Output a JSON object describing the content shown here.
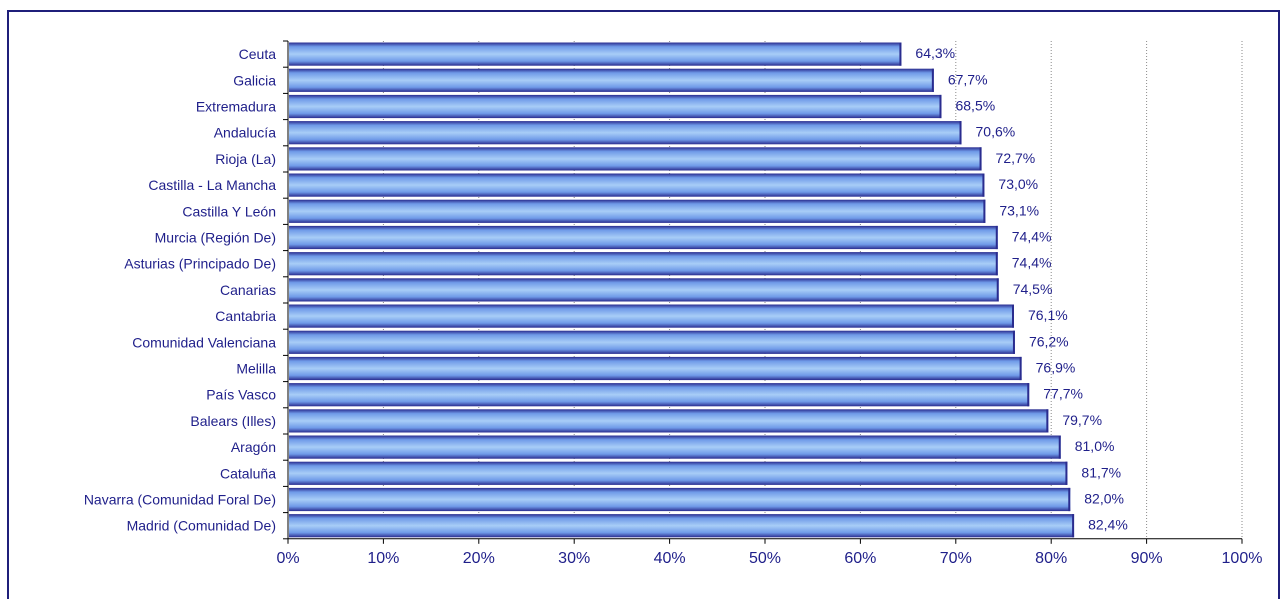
{
  "chart_data": {
    "type": "bar",
    "orientation": "horizontal",
    "categories": [
      "Ceuta",
      "Galicia",
      "Extremadura",
      "Andalucía",
      "Rioja (La)",
      "Castilla - La Mancha",
      "Castilla Y León",
      "Murcia (Región De)",
      "Asturias (Principado De)",
      "Canarias",
      "Cantabria",
      "Comunidad Valenciana",
      "Melilla",
      "País Vasco",
      "Balears (Illes)",
      "Aragón",
      "Cataluña",
      "Navarra (Comunidad Foral De)",
      "Madrid (Comunidad De)"
    ],
    "values": [
      64.3,
      67.7,
      68.5,
      70.6,
      72.7,
      73.0,
      73.1,
      74.4,
      74.4,
      74.5,
      76.1,
      76.2,
      76.9,
      77.7,
      79.7,
      81.0,
      81.7,
      82.0,
      82.4
    ],
    "value_labels": [
      "64,3%",
      "67,7%",
      "68,5%",
      "70,6%",
      "72,7%",
      "73,0%",
      "73,1%",
      "74,4%",
      "74,4%",
      "74,5%",
      "76,1%",
      "76,2%",
      "76,9%",
      "77,7%",
      "79,7%",
      "81,0%",
      "81,7%",
      "82,0%",
      "82,4%"
    ],
    "x_ticks": [
      "0%",
      "10%",
      "20%",
      "30%",
      "40%",
      "50%",
      "60%",
      "70%",
      "80%",
      "90%",
      "100%"
    ],
    "xlim": [
      0,
      100
    ],
    "grid": "vertical dotted",
    "title": "",
    "xlabel": "",
    "ylabel": ""
  },
  "colors": {
    "bar_light": "#a4c8f5",
    "bar_mid": "#7aa6ec",
    "bar_dark": "#2a2c8f",
    "text": "#1f1f8a",
    "frame": "#1f1f7a"
  }
}
